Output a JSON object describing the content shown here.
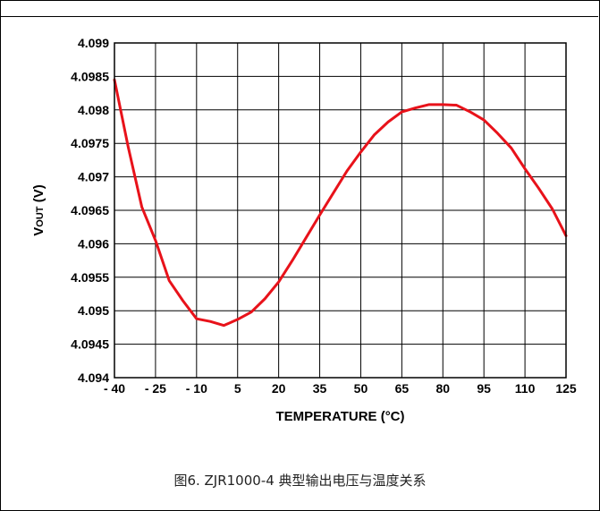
{
  "chart_data": {
    "type": "line",
    "xlabel": "TEMPERATURE (°C)",
    "ylabel": "VOUT (V)",
    "ylabel_parts": {
      "main": "V",
      "sub": "OUT",
      "unit": " (V)"
    },
    "xlim": [
      -40,
      125
    ],
    "ylim": [
      4.094,
      4.099
    ],
    "x_ticks": [
      -40,
      -25,
      -10,
      5,
      20,
      35,
      50,
      65,
      80,
      95,
      110,
      125
    ],
    "x_tick_labels": [
      "- 40",
      "- 25",
      "- 10",
      "5",
      "20",
      "35",
      "50",
      "65",
      "80",
      "95",
      "110",
      "125"
    ],
    "y_ticks": [
      4.094,
      4.0945,
      4.095,
      4.0955,
      4.096,
      4.0965,
      4.097,
      4.0975,
      4.098,
      4.0985,
      4.099
    ],
    "y_tick_labels": [
      "4.094",
      "4.0945",
      "4.095",
      "4.0955",
      "4.096",
      "4.0965",
      "4.097",
      "4.0975",
      "4.098",
      "4.0985",
      "4.099"
    ],
    "grid": true,
    "series": [
      {
        "color": "#e8121a",
        "x": [
          -40,
          -35,
          -30,
          -25,
          -20,
          -15,
          -10,
          -5,
          0,
          5,
          10,
          15,
          20,
          25,
          30,
          35,
          40,
          45,
          50,
          55,
          60,
          65,
          70,
          75,
          80,
          85,
          90,
          95,
          100,
          105,
          110,
          115,
          120,
          125
        ],
        "y": [
          4.09845,
          4.09745,
          4.09655,
          4.09605,
          4.09545,
          4.09515,
          4.09488,
          4.09484,
          4.09478,
          4.09487,
          4.09498,
          4.09518,
          4.09543,
          4.09575,
          4.09609,
          4.09643,
          4.09676,
          4.09709,
          4.09737,
          4.09763,
          4.09782,
          4.09797,
          4.09803,
          4.09808,
          4.09808,
          4.09807,
          4.09797,
          4.09785,
          4.09765,
          4.09743,
          4.09712,
          4.09683,
          4.09652,
          4.09612
        ]
      }
    ]
  },
  "caption": "图6. ZJR1000-4 典型输出电压与温度关系"
}
